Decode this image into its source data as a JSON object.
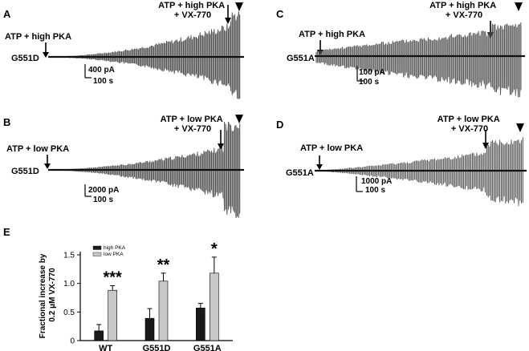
{
  "panels": [
    {
      "id": "A",
      "label": "A",
      "trace": "G551D",
      "ann1": "ATP + high PKA",
      "ann2a": "ATP + high PKA",
      "ann2b": "+ VX-770",
      "scale_y": "400 pA",
      "scale_x": "100 s"
    },
    {
      "id": "B",
      "label": "B",
      "trace": "G551D",
      "ann1": "ATP + low PKA",
      "ann2a": "ATP + low PKA",
      "ann2b": "+ VX-770",
      "scale_y": "2000 pA",
      "scale_x": "100 s"
    },
    {
      "id": "C",
      "label": "C",
      "trace": "G551A",
      "ann1": "ATP + high PKA",
      "ann2a": "ATP + high PKA",
      "ann2b": "+ VX-770",
      "scale_y": "100 pA",
      "scale_x": "100 s"
    },
    {
      "id": "D",
      "label": "D",
      "trace": "G551A",
      "ann1": "ATP + low PKA",
      "ann2a": "ATP + low PKA",
      "ann2b": "+ VX-770",
      "scale_y": "1000 pA",
      "scale_x": "100 s"
    }
  ],
  "chart_data": {
    "type": "bar",
    "label": "E",
    "ylabel_line1": "Fractional increase by",
    "ylabel_line2": "0.2 μM VX-770",
    "ylim": [
      0,
      1.5
    ],
    "yticks": [
      0,
      0.5,
      1.0,
      1.5
    ],
    "ytick_labels": [
      "0",
      "0.5",
      "1.0",
      "1.5"
    ],
    "categories": [
      "WT",
      "G551D",
      "G551A"
    ],
    "significance": [
      "***",
      "**",
      "*"
    ],
    "series": [
      {
        "name": "high PKA",
        "color": "#1a1a1a",
        "values": [
          0.17,
          0.39,
          0.57
        ],
        "errors": [
          0.11,
          0.17,
          0.08
        ]
      },
      {
        "name": "low PKA",
        "color": "#c8c8c8",
        "values": [
          0.88,
          1.04,
          1.18
        ],
        "errors": [
          0.08,
          0.14,
          0.28
        ]
      }
    ]
  }
}
